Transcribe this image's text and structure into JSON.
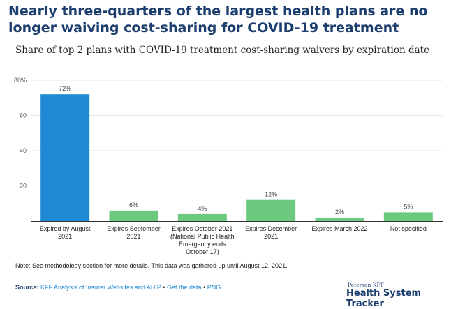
{
  "header": {
    "headline": "Nearly three-quarters of the largest health plans are no longer waiving cost-sharing for COVID-19 treatment"
  },
  "chart_data": {
    "type": "bar",
    "title": "Share of top 2 plans with COVID-19 treatment cost-sharing waivers by expiration date",
    "xlabel": "",
    "ylabel": "",
    "ylim": [
      0,
      80
    ],
    "yticks": [
      {
        "value": 20,
        "label": "20"
      },
      {
        "value": 40,
        "label": "40"
      },
      {
        "value": 60,
        "label": "60"
      },
      {
        "value": 80,
        "label": "80%"
      }
    ],
    "grid": true,
    "legend": "none",
    "categories": [
      [
        "Expired by August",
        "2021"
      ],
      [
        "Expires September",
        "2021"
      ],
      [
        "Expires October 2021",
        "(National Public Health",
        "Emergency ends",
        "October 17)"
      ],
      [
        "Expires December",
        "2021"
      ],
      [
        "Expires March 2022"
      ],
      [
        "Not specified"
      ]
    ],
    "values": [
      72,
      6,
      4,
      12,
      2,
      5
    ],
    "data_labels": [
      "72%",
      "6%",
      "4%",
      "12%",
      "2%",
      "5%"
    ],
    "colors": [
      "#1f8ad3",
      "#6cc97f",
      "#6cc97f",
      "#6cc97f",
      "#6cc97f",
      "#6cc97f"
    ],
    "gridline_color": "#e5e5e5",
    "axis_color": "#333333"
  },
  "footer": {
    "note": "Note: See methodology section for more details. This data was gathered up until August 12, 2021.",
    "source_label": "Source:",
    "source_link": "KFF Analysis of Insurer Websites and AHIP",
    "separator": "•",
    "get_data": "Get the data",
    "png": "PNG",
    "brand_top": "Peterson-KFF",
    "brand_main": "Health System Tracker"
  }
}
